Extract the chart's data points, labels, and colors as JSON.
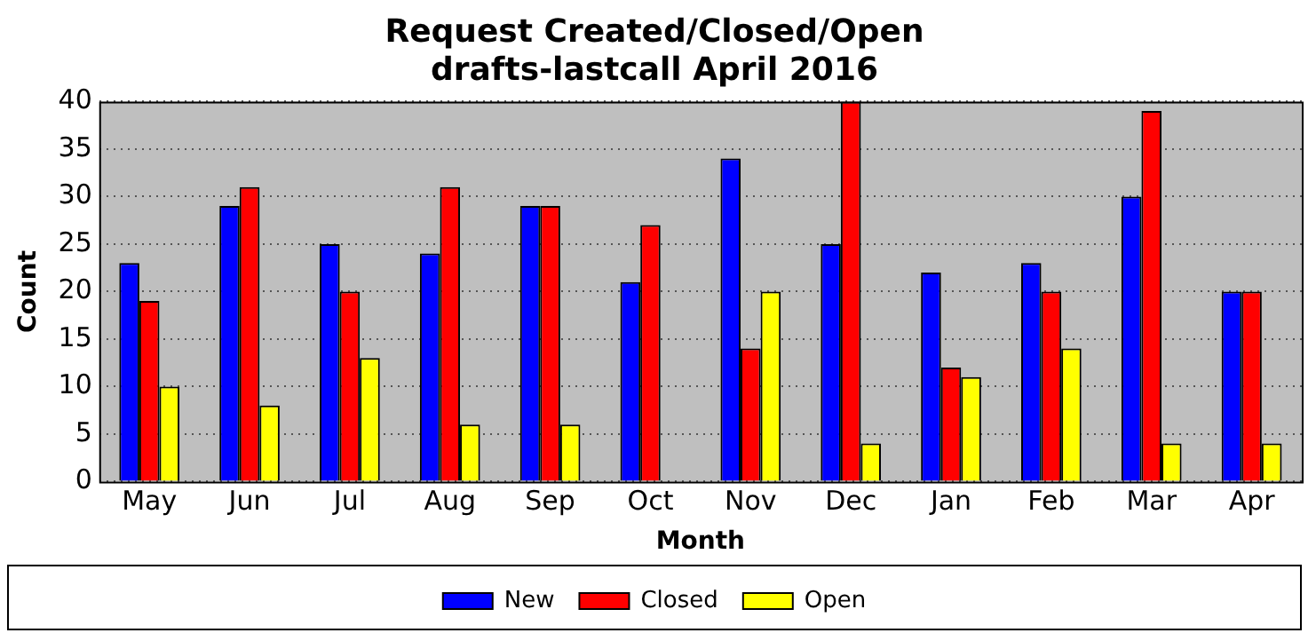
{
  "chart_data": {
    "type": "bar",
    "title": "Request Created/Closed/Open",
    "subtitle": "drafts-lastcall April 2016",
    "xlabel": "Month",
    "ylabel": "Count",
    "categories": [
      "May",
      "Jun",
      "Jul",
      "Aug",
      "Sep",
      "Oct",
      "Nov",
      "Dec",
      "Jan",
      "Feb",
      "Mar",
      "Apr"
    ],
    "series": [
      {
        "name": "New",
        "color": "#0000ff",
        "values": [
          23,
          29,
          25,
          24,
          29,
          21,
          34,
          25,
          22,
          23,
          30,
          20
        ]
      },
      {
        "name": "Closed",
        "color": "#ff0000",
        "values": [
          19,
          31,
          20,
          31,
          29,
          27,
          14,
          40,
          12,
          20,
          39,
          20
        ]
      },
      {
        "name": "Open",
        "color": "#ffff00",
        "values": [
          10,
          8,
          13,
          6,
          6,
          0,
          20,
          4,
          11,
          14,
          4,
          4
        ]
      }
    ],
    "ylim": [
      0,
      40
    ],
    "yticks": [
      0,
      5,
      10,
      15,
      20,
      25,
      30,
      35,
      40
    ],
    "grid": "y",
    "legend": "bottom"
  }
}
